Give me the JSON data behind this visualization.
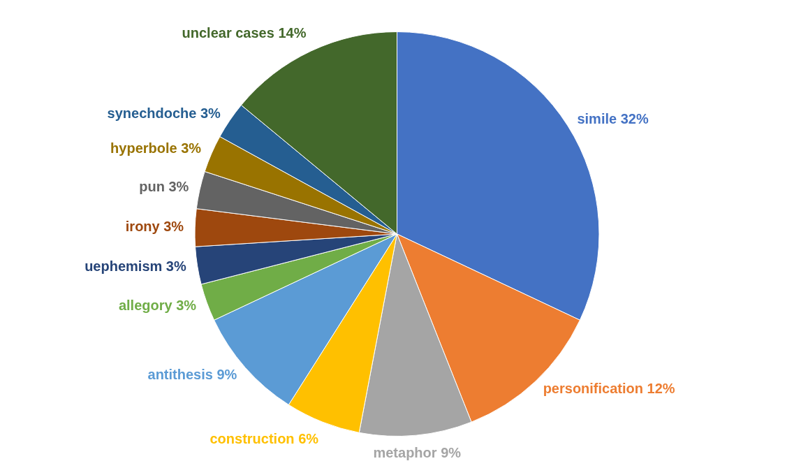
{
  "chart_data": {
    "type": "pie",
    "categories": [
      "simile",
      "personification",
      "metaphor",
      "construction",
      "antithesis",
      "allegory",
      "uephemism",
      "irony",
      "pun",
      "hyperbole",
      "synechdoche",
      "unclear cases"
    ],
    "values": [
      32,
      12,
      9,
      6,
      9,
      3,
      3,
      3,
      3,
      3,
      3,
      14
    ],
    "value_labels": [
      "32%",
      "12%",
      "9%",
      "6%",
      "9%",
      "3%",
      "3%",
      "3%",
      "3%",
      "3%",
      "3%",
      "14%"
    ],
    "colors": [
      "#4472c4",
      "#ed7d31",
      "#a5a5a5",
      "#ffc000",
      "#5b9bd5",
      "#70ad47",
      "#264478",
      "#9e480e",
      "#636363",
      "#997300",
      "#255e91",
      "#43682b"
    ],
    "legend": false
  }
}
